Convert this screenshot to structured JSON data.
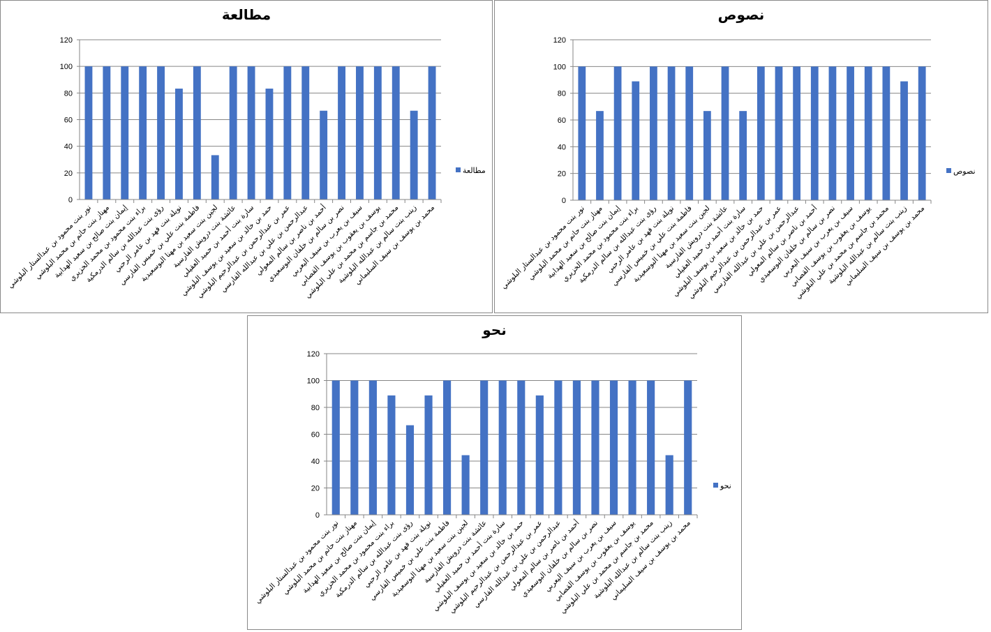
{
  "colors": {
    "bar": "#4472C4",
    "grid": "#868686"
  },
  "chart_data": [
    {
      "type": "bar",
      "title": "مطالعة",
      "legend": "مطالعة",
      "legend_position": "right",
      "ylim": [
        0,
        120
      ],
      "yticks": [
        "0",
        "20",
        "40",
        "60",
        "80",
        "100",
        "120"
      ],
      "grid": true,
      "categories": [
        "نور بنت محمود بن عبدالستار البلوشي",
        "مهناز بنت حاتم بن محمد البلوشي",
        "إيمان بنت صالح بن سعيد الهدابية",
        "براء بنت محمود بن محمد الخزيري",
        "رؤى بنت عبدالله بن سالم الدرمكية",
        "نويلة بنت فهد بن عامر الرحبي",
        "فاطمة بنت علي بن خميس الفارسي",
        "لجين بنت سعيد بن مهنا البوسعيدية",
        "عائشة بنت درويش الفارسية",
        "سارة بنت أحمد بن حميد العقيلي",
        "حمد بن خالد بن سعيد بن يوسف البلوشي",
        "عمر بن عبدالرحمن بن عبدالرحيم البلوشي",
        "عبدالرحمن بن علي بن عبدالله الفارسي",
        "أحمد بن ناصر بن سالم المعولي",
        "نصر بن سالم بن خلفان البوسعيدي",
        "سيف بن يعرب بن سيف اليعربي",
        "يوسف بن يعقوب بن يوسف القصابي",
        "محمد بن جاسم بن محمد بن علي البلوشي",
        "زينب بنت سالم بن عبدالله البلوشية",
        "محمد بن يوسف بن سيف السليماني"
      ],
      "values": [
        100,
        100,
        100,
        100,
        100,
        83.3,
        100,
        33.3,
        100,
        100,
        83.3,
        100,
        100,
        66.7,
        100,
        100,
        100,
        100,
        66.7,
        100
      ]
    },
    {
      "type": "bar",
      "title": "نصوص",
      "legend": "نصوص",
      "legend_position": "right",
      "ylim": [
        0,
        120
      ],
      "yticks": [
        "0",
        "20",
        "40",
        "60",
        "80",
        "100",
        "120"
      ],
      "grid": true,
      "categories": [
        "نور بنت محمود بن عبدالستار البلوشي",
        "مهناز بنت حاتم بن محمد البلوشي",
        "إيمان بنت صالح بن سعيد الهدابية",
        "براء بنت محمود بن محمد الخزيري",
        "رؤى بنت عبدالله بن سالم الدرمكية",
        "نويلة بنت فهد بن عامر الرحبي",
        "فاطمة بنت علي بن خميس الفارسي",
        "لجين بنت سعيد بن مهنا البوسعيدية",
        "عائشة بنت درويش الفارسية",
        "سارة بنت أحمد بن حميد العقيلي",
        "حمد بن خالد بن سعيد بن يوسف البلوشي",
        "عمر بن عبدالرحمن بن عبدالرحيم البلوشي",
        "عبدالرحمن بن علي بن عبدالله الفارسي",
        "أحمد بن ناصر بن سالم المعولي",
        "نصر بن سالم بن خلفان البوسعيدي",
        "سيف بن يعرب بن سيف اليعربي",
        "يوسف بن يعقوب بن يوسف القصابي",
        "محمد بن جاسم بن محمد بن علي البلوشي",
        "زينب بنت سالم بن عبدالله البلوشية",
        "محمد بن يوسف بن سيف السليماني"
      ],
      "values": [
        100,
        66.7,
        100,
        88.9,
        100,
        100,
        100,
        66.7,
        100,
        66.7,
        100,
        100,
        100,
        100,
        100,
        100,
        100,
        100,
        88.9,
        100
      ]
    },
    {
      "type": "bar",
      "title": "نحو",
      "legend": "نحو",
      "legend_position": "right",
      "ylim": [
        0,
        120
      ],
      "yticks": [
        "0",
        "20",
        "40",
        "60",
        "80",
        "100",
        "120"
      ],
      "grid": true,
      "categories": [
        "نور بنت محمود بن عبدالستار البلوشي",
        "مهناز بنت حاتم بن محمد البلوشي",
        "إيمان بنت صالح بن سعيد الهدابية",
        "براء بنت محمود بن محمد الخزيري",
        "رؤى بنت عبدالله بن سالم الدرمكية",
        "نويلة بنت فهد بن عامر الرحبي",
        "فاطمة بنت علي بن خميس الفارسي",
        "لجين بنت سعيد بن مهنا البوسعيدية",
        "عائشة بنت درويش الفارسية",
        "سارة بنت أحمد بن حميد العقيلي",
        "حمد بن خالد بن سعيد بن يوسف البلوشي",
        "عمر بن عبدالرحمن بن عبدالرحيم البلوشي",
        "عبدالرحمن بن علي بن عبدالله الفارسي",
        "أحمد بن ناصر بن سالم المعولي",
        "نصر بن سالم بن خلفان البوسعيدي",
        "سيف بن يعرب بن سيف اليعربي",
        "يوسف بن يعقوب بن يوسف القصابي",
        "محمد بن جاسم بن محمد بن علي البلوشي",
        "زينب بنت سالم بن عبدالله البلوشية",
        "محمد بن يوسف بن سيف السليماني"
      ],
      "values": [
        100,
        100,
        100,
        88.9,
        66.7,
        88.9,
        100,
        44.4,
        100,
        100,
        100,
        88.9,
        100,
        100,
        100,
        100,
        100,
        100,
        44.4,
        100
      ]
    }
  ]
}
